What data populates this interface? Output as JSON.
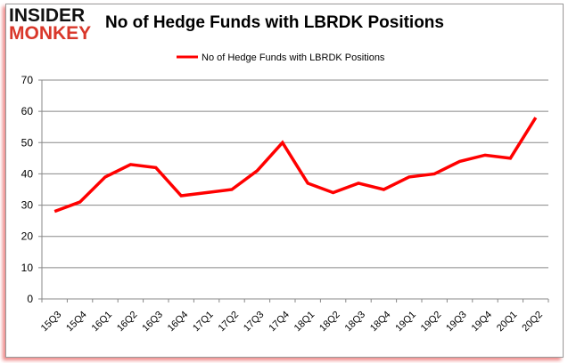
{
  "logo": {
    "line1": "INSIDER",
    "line2": "MONKEY"
  },
  "chart_data": {
    "type": "line",
    "title": "No of Hedge Funds with LBRDK Positions",
    "legend": {
      "entries": [
        "No of Hedge Funds with LBRDK Positions"
      ],
      "placement": "top-center"
    },
    "categories": [
      "15Q3",
      "15Q4",
      "16Q1",
      "16Q2",
      "16Q3",
      "16Q4",
      "17Q1",
      "17Q2",
      "17Q3",
      "17Q4",
      "18Q1",
      "18Q2",
      "18Q3",
      "18Q4",
      "19Q1",
      "19Q2",
      "19Q3",
      "19Q4",
      "20Q1",
      "20Q2"
    ],
    "series": [
      {
        "name": "No of Hedge Funds with LBRDK Positions",
        "color": "#ff0000",
        "values": [
          28,
          31,
          39,
          43,
          42,
          33,
          34,
          35,
          41,
          50,
          37,
          34,
          37,
          35,
          39,
          40,
          44,
          46,
          45,
          58
        ]
      }
    ],
    "yticks": [
      0,
      10,
      20,
      30,
      40,
      50,
      60,
      70
    ],
    "ylim": [
      0,
      70
    ],
    "xlabel": "",
    "ylabel": "",
    "grid": true
  }
}
